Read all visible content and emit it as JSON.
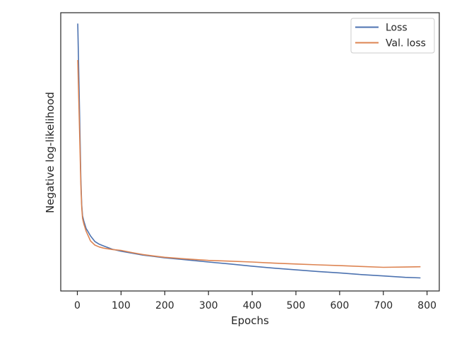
{
  "chart_data": {
    "type": "line",
    "title": "",
    "xlabel": "Epochs",
    "ylabel": "Negative log-likelihood",
    "xlim": [
      -38,
      828
    ],
    "ylim": [
      0.0,
      1.0
    ],
    "y_ticks_labeled": false,
    "x_ticks": [
      0,
      100,
      200,
      300,
      400,
      500,
      600,
      700,
      800
    ],
    "x_tick_labels": [
      "0",
      "100",
      "200",
      "300",
      "400",
      "500",
      "600",
      "700",
      "800"
    ],
    "grid": false,
    "legend_position": "top-right",
    "series": [
      {
        "name": "Loss",
        "color": "#4c72b0",
        "x": [
          1,
          5,
          8,
          10,
          12,
          15,
          20,
          25,
          30,
          40,
          50,
          60,
          80,
          100,
          125,
          150,
          175,
          200,
          250,
          300,
          350,
          400,
          450,
          500,
          550,
          600,
          650,
          700,
          750,
          785
        ],
        "y": [
          0.961,
          0.65,
          0.4,
          0.31,
          0.27,
          0.25,
          0.225,
          0.212,
          0.198,
          0.178,
          0.168,
          0.162,
          0.15,
          0.143,
          0.136,
          0.129,
          0.124,
          0.119,
          0.112,
          0.104,
          0.097,
          0.089,
          0.082,
          0.076,
          0.07,
          0.065,
          0.059,
          0.054,
          0.049,
          0.047
        ]
      },
      {
        "name": "Val. loss",
        "color": "#dd8452",
        "x": [
          1,
          5,
          8,
          10,
          12,
          15,
          20,
          25,
          30,
          40,
          50,
          60,
          80,
          100,
          125,
          150,
          175,
          200,
          250,
          300,
          350,
          400,
          450,
          500,
          550,
          600,
          650,
          700,
          750,
          785
        ],
        "y": [
          0.83,
          0.58,
          0.38,
          0.3,
          0.26,
          0.24,
          0.215,
          0.198,
          0.18,
          0.165,
          0.158,
          0.154,
          0.149,
          0.146,
          0.138,
          0.131,
          0.126,
          0.121,
          0.115,
          0.11,
          0.107,
          0.104,
          0.1,
          0.097,
          0.094,
          0.091,
          0.088,
          0.085,
          0.086,
          0.087
        ]
      }
    ]
  }
}
